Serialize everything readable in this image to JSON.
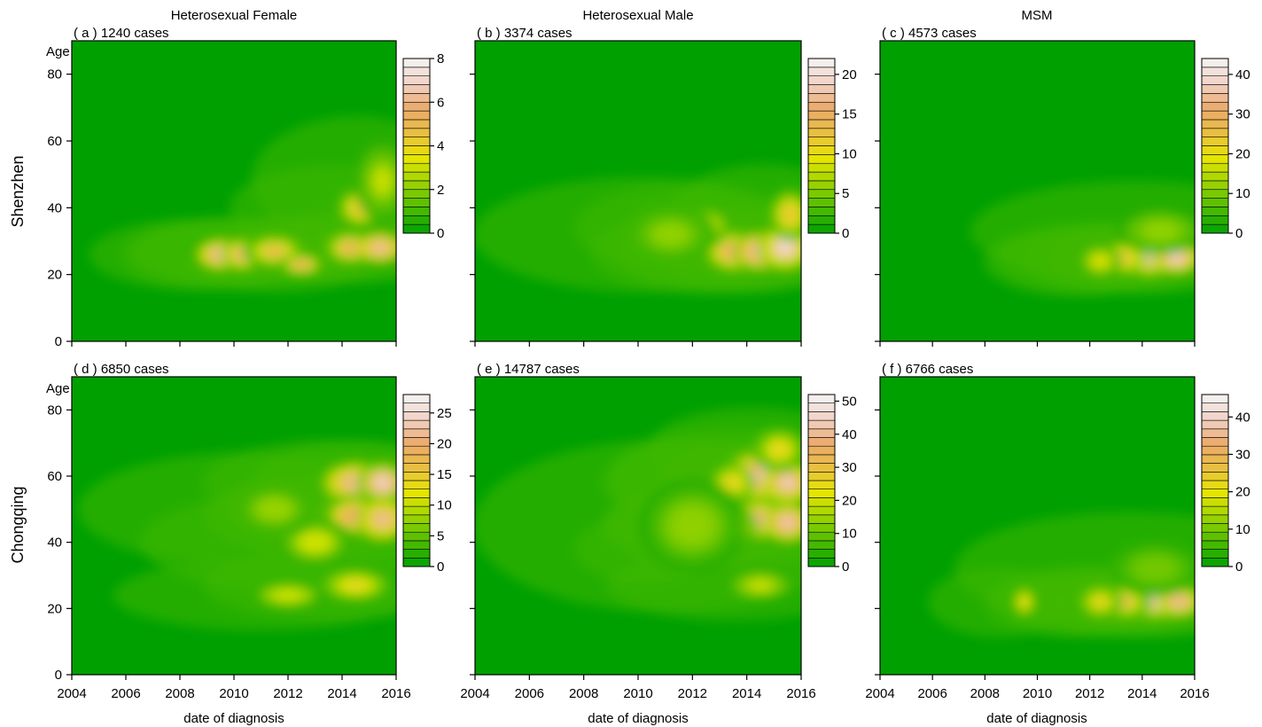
{
  "chart_data": {
    "type": "heatmap",
    "column_titles": [
      "Heterosexual Female",
      "Heterosexual Male",
      "MSM"
    ],
    "row_titles": [
      "Shenzhen",
      "Chongqing"
    ],
    "ylabel": "Age",
    "xlabel": "date of diagnosis",
    "x_ticks": [
      2004,
      2006,
      2008,
      2010,
      2012,
      2014,
      2016
    ],
    "y_ticks": [
      0,
      20,
      40,
      60,
      80
    ],
    "xlim": [
      2004,
      2016
    ],
    "ylim": [
      0,
      90
    ],
    "color_scale": {
      "stops": [
        "#00a000",
        "#4cbc00",
        "#9bd400",
        "#e6e600",
        "#e8c040",
        "#ebaa6c",
        "#f2d2c6",
        "#f4f4f4"
      ]
    },
    "panels": [
      {
        "tag": "( a )",
        "cases_label": "1240 cases",
        "colorbar": {
          "max": 8,
          "ticks": [
            0,
            2,
            4,
            6,
            8
          ]
        },
        "hotspots": [
          {
            "date": 2009.5,
            "age": 26,
            "age_spread": 3,
            "date_spread": 0.6,
            "level": 6.5
          },
          {
            "date": 2010.3,
            "age": 26,
            "age_spread": 3,
            "date_spread": 0.5,
            "level": 6
          },
          {
            "date": 2011.5,
            "age": 27,
            "age_spread": 3,
            "date_spread": 0.7,
            "level": 5
          },
          {
            "date": 2012.5,
            "age": 23,
            "age_spread": 2,
            "date_spread": 0.5,
            "level": 5.5
          },
          {
            "date": 2014.3,
            "age": 28,
            "age_spread": 3,
            "date_spread": 0.6,
            "level": 5.5
          },
          {
            "date": 2015.4,
            "age": 28,
            "age_spread": 3,
            "date_spread": 0.6,
            "level": 6.5
          },
          {
            "date": 2014.7,
            "age": 40,
            "age_spread": 4,
            "date_spread": 0.6,
            "level": 4.5
          },
          {
            "date": 2015.5,
            "age": 48,
            "age_spread": 7,
            "date_spread": 0.6,
            "level": 3
          }
        ]
      },
      {
        "tag": "( b )",
        "cases_label": "3374 cases",
        "colorbar": {
          "max": 22,
          "ticks": [
            0,
            5,
            10,
            15,
            20
          ]
        },
        "hotspots": [
          {
            "date": 2013.5,
            "age": 27,
            "age_spread": 4,
            "date_spread": 0.7,
            "level": 16
          },
          {
            "date": 2014.5,
            "age": 27,
            "age_spread": 4,
            "date_spread": 0.7,
            "level": 18
          },
          {
            "date": 2015.4,
            "age": 28,
            "age_spread": 4,
            "date_spread": 0.6,
            "level": 20
          },
          {
            "date": 2012.5,
            "age": 34,
            "age_spread": 4,
            "date_spread": 0.6,
            "level": 11
          },
          {
            "date": 2015.6,
            "age": 38,
            "age_spread": 5,
            "date_spread": 0.5,
            "level": 12
          },
          {
            "date": 2011.2,
            "age": 32,
            "age_spread": 6,
            "date_spread": 1.2,
            "level": 6
          }
        ]
      },
      {
        "tag": "( c )",
        "cases_label": "4573 cases",
        "colorbar": {
          "max": 44,
          "ticks": [
            0,
            10,
            20,
            30,
            40
          ]
        },
        "hotspots": [
          {
            "date": 2014.3,
            "age": 25,
            "age_spread": 3,
            "date_spread": 0.6,
            "level": 38
          },
          {
            "date": 2015.3,
            "age": 25,
            "age_spread": 3,
            "date_spread": 0.6,
            "level": 40
          },
          {
            "date": 2013.3,
            "age": 25,
            "age_spread": 3,
            "date_spread": 0.6,
            "level": 26
          },
          {
            "date": 2012.4,
            "age": 24,
            "age_spread": 3,
            "date_spread": 0.5,
            "level": 20
          },
          {
            "date": 2014.7,
            "age": 33,
            "age_spread": 5,
            "date_spread": 1.2,
            "level": 12
          }
        ]
      },
      {
        "tag": "( d )",
        "cases_label": "6850 cases",
        "colorbar": {
          "max": 28,
          "ticks": [
            0,
            5,
            10,
            15,
            20,
            25
          ]
        },
        "hotspots": [
          {
            "date": 2014.5,
            "age": 58,
            "age_spread": 4,
            "date_spread": 0.8,
            "level": 22
          },
          {
            "date": 2015.5,
            "age": 58,
            "age_spread": 4,
            "date_spread": 0.6,
            "level": 25
          },
          {
            "date": 2014.5,
            "age": 48,
            "age_spread": 4,
            "date_spread": 0.8,
            "level": 20
          },
          {
            "date": 2015.5,
            "age": 47,
            "age_spread": 4,
            "date_spread": 0.6,
            "level": 22
          },
          {
            "date": 2014.5,
            "age": 27,
            "age_spread": 3,
            "date_spread": 0.8,
            "level": 14
          },
          {
            "date": 2013.0,
            "age": 40,
            "age_spread": 5,
            "date_spread": 1.0,
            "level": 11
          },
          {
            "date": 2012.0,
            "age": 24,
            "age_spread": 3,
            "date_spread": 1.0,
            "level": 11
          },
          {
            "date": 2011.5,
            "age": 50,
            "age_spread": 6,
            "date_spread": 1.2,
            "level": 8
          }
        ]
      },
      {
        "tag": "( e )",
        "cases_label": "14787 cases",
        "colorbar": {
          "max": 52,
          "ticks": [
            0,
            10,
            20,
            30,
            40,
            50
          ]
        },
        "hotspots": [
          {
            "date": 2014.5,
            "age": 60,
            "age_spread": 5,
            "date_spread": 0.8,
            "level": 42
          },
          {
            "date": 2015.5,
            "age": 58,
            "age_spread": 4,
            "date_spread": 0.6,
            "level": 46
          },
          {
            "date": 2014.5,
            "age": 47,
            "age_spread": 4,
            "date_spread": 0.8,
            "level": 40
          },
          {
            "date": 2015.5,
            "age": 46,
            "age_spread": 4,
            "date_spread": 0.6,
            "level": 44
          },
          {
            "date": 2013.5,
            "age": 45,
            "age_spread": 4,
            "date_spread": 0.6,
            "level": 30
          },
          {
            "date": 2013.5,
            "age": 58,
            "age_spread": 4,
            "date_spread": 0.6,
            "level": 26
          },
          {
            "date": 2015.2,
            "age": 68,
            "age_spread": 4,
            "date_spread": 0.6,
            "level": 26
          },
          {
            "date": 2011.3,
            "age": 38,
            "age_spread": 3,
            "date_spread": 0.3,
            "level": 28
          },
          {
            "date": 2012.0,
            "age": 45,
            "age_spread": 10,
            "date_spread": 1.4,
            "level": 14
          },
          {
            "date": 2014.5,
            "age": 27,
            "age_spread": 3,
            "date_spread": 0.8,
            "level": 20
          }
        ]
      },
      {
        "tag": "( f )",
        "cases_label": "6766 cases",
        "colorbar": {
          "max": 46,
          "ticks": [
            0,
            10,
            20,
            30,
            40
          ]
        },
        "hotspots": [
          {
            "date": 2014.5,
            "age": 22,
            "age_spread": 3,
            "date_spread": 0.7,
            "level": 40
          },
          {
            "date": 2015.4,
            "age": 22,
            "age_spread": 3,
            "date_spread": 0.6,
            "level": 36
          },
          {
            "date": 2013.3,
            "age": 22,
            "age_spread": 3,
            "date_spread": 0.6,
            "level": 30
          },
          {
            "date": 2012.4,
            "age": 22,
            "age_spread": 3,
            "date_spread": 0.5,
            "level": 24
          },
          {
            "date": 2009.5,
            "age": 22,
            "age_spread": 3,
            "date_spread": 0.3,
            "level": 22
          },
          {
            "date": 2014.5,
            "age": 32,
            "age_spread": 6,
            "date_spread": 1.3,
            "level": 10
          }
        ]
      }
    ]
  }
}
